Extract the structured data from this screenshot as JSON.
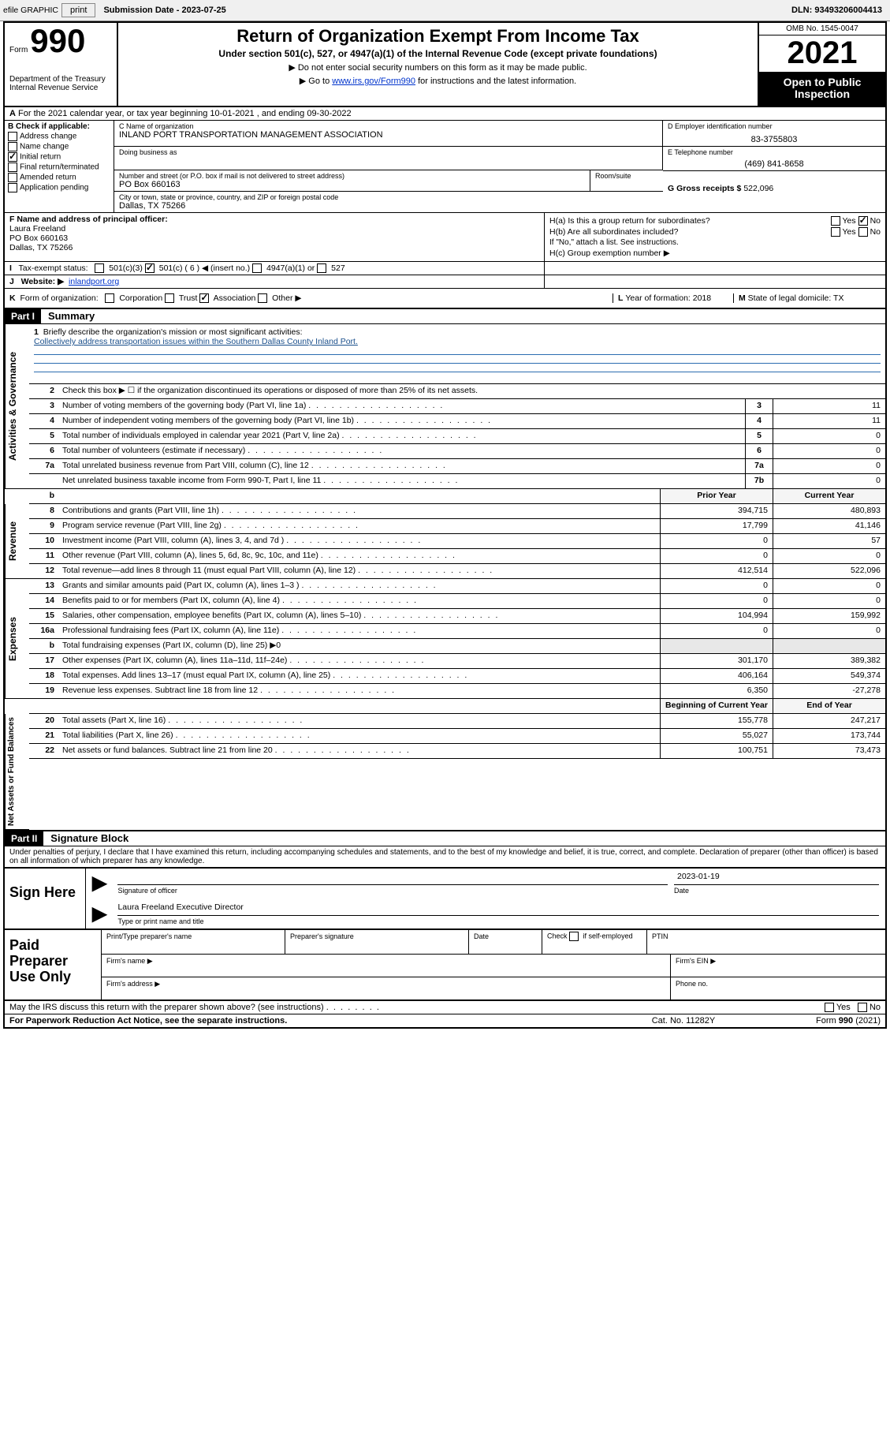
{
  "toolbar": {
    "efile": "efile GRAPHIC",
    "print": "print",
    "sub_label": "Submission Date - 2023-07-25",
    "dln": "DLN: 93493206004413"
  },
  "hdr": {
    "form_word": "Form",
    "form_num": "990",
    "dept": "Department of the Treasury\nInternal Revenue Service",
    "title": "Return of Organization Exempt From Income Tax",
    "sub1": "Under section 501(c), 527, or 4947(a)(1) of the Internal Revenue Code (except private foundations)",
    "sub2": "Do not enter social security numbers on this form as it may be made public.",
    "sub3_pre": "Go to ",
    "sub3_link": "www.irs.gov/Form990",
    "sub3_post": " for instructions and the latest information.",
    "omb": "OMB No. 1545-0047",
    "year": "2021",
    "open": "Open to Public Inspection"
  },
  "rowA": {
    "label_a": "A",
    "text": "For the 2021 calendar year, or tax year beginning 10-01-2021   , and ending 09-30-2022"
  },
  "colB": {
    "head": "B Check if applicable:",
    "items": [
      "Address change",
      "Name change",
      "Initial return",
      "Final return/terminated",
      "Amended return",
      "Application pending"
    ],
    "checked_idx": 2
  },
  "boxC": {
    "lbl": "C Name of organization",
    "name": "INLAND PORT TRANSPORTATION MANAGEMENT ASSOCIATION",
    "dba_lbl": "Doing business as",
    "dba": "",
    "addr_lbl": "Number and street (or P.O. box if mail is not delivered to street address)",
    "room_lbl": "Room/suite",
    "addr": "PO Box 660163",
    "city_lbl": "City or town, state or province, country, and ZIP or foreign postal code",
    "city": "Dallas, TX  75266"
  },
  "boxD": {
    "lbl": "D Employer identification number",
    "val": "83-3755803"
  },
  "boxE": {
    "lbl": "E Telephone number",
    "val": "(469) 841-8658"
  },
  "boxG": {
    "lbl": "G Gross receipts $",
    "val": "522,096"
  },
  "boxF": {
    "lbl": "F Name and address of principal officer:",
    "name": "Laura Freeland",
    "addr1": "PO Box 660163",
    "addr2": "Dallas, TX  75266"
  },
  "boxH": {
    "ha": "H(a)  Is this a group return for subordinates?",
    "hb": "H(b)  Are all subordinates included?",
    "hb_note": "If \"No,\" attach a list. See instructions.",
    "hc": "H(c)  Group exemption number ▶",
    "yes": "Yes",
    "no": "No",
    "ha_no_checked": true
  },
  "rowI": {
    "lbl": "I",
    "text": "Tax-exempt status:",
    "opts": [
      "501(c)(3)",
      "501(c) ( 6 ) ◀ (insert no.)",
      "4947(a)(1) or",
      "527"
    ],
    "checked_idx": 1
  },
  "rowJ": {
    "lbl": "J",
    "text": "Website: ▶",
    "val": "inlandport.org"
  },
  "rowK": {
    "lbl": "K",
    "text": "Form of organization:",
    "opts": [
      "Corporation",
      "Trust",
      "Association",
      "Other ▶"
    ],
    "checked_idx": 2
  },
  "rowL": {
    "lbl": "L",
    "text": "Year of formation: 2018"
  },
  "rowM": {
    "lbl": "M",
    "text": "State of legal domicile: TX"
  },
  "part1": {
    "bar": "Part I",
    "title": "Summary"
  },
  "mission": {
    "num": "1",
    "lbl": "Briefly describe the organization's mission or most significant activities:",
    "text": "Collectively address transportation issues within the Southern Dallas County Inland Port."
  },
  "lines_gov": [
    {
      "num": "2",
      "desc": "Check this box ▶ ☐  if the organization discontinued its operations or disposed of more than 25% of its net assets.",
      "box": "",
      "v": ""
    },
    {
      "num": "3",
      "desc": "Number of voting members of the governing body (Part VI, line 1a)",
      "box": "3",
      "v": "11"
    },
    {
      "num": "4",
      "desc": "Number of independent voting members of the governing body (Part VI, line 1b)",
      "box": "4",
      "v": "11"
    },
    {
      "num": "5",
      "desc": "Total number of individuals employed in calendar year 2021 (Part V, line 2a)",
      "box": "5",
      "v": "0"
    },
    {
      "num": "6",
      "desc": "Total number of volunteers (estimate if necessary)",
      "box": "6",
      "v": "0"
    },
    {
      "num": "7a",
      "desc": "Total unrelated business revenue from Part VIII, column (C), line 12",
      "box": "7a",
      "v": "0"
    },
    {
      "num": "",
      "desc": "Net unrelated business taxable income from Form 990-T, Part I, line 11",
      "box": "7b",
      "v": "0"
    }
  ],
  "twocol_head": {
    "b": "b",
    "prior": "Prior Year",
    "current": "Current Year"
  },
  "lines_rev": [
    {
      "num": "8",
      "desc": "Contributions and grants (Part VIII, line 1h)",
      "p": "394,715",
      "c": "480,893"
    },
    {
      "num": "9",
      "desc": "Program service revenue (Part VIII, line 2g)",
      "p": "17,799",
      "c": "41,146"
    },
    {
      "num": "10",
      "desc": "Investment income (Part VIII, column (A), lines 3, 4, and 7d )",
      "p": "0",
      "c": "57"
    },
    {
      "num": "11",
      "desc": "Other revenue (Part VIII, column (A), lines 5, 6d, 8c, 9c, 10c, and 11e)",
      "p": "0",
      "c": "0"
    },
    {
      "num": "12",
      "desc": "Total revenue—add lines 8 through 11 (must equal Part VIII, column (A), line 12)",
      "p": "412,514",
      "c": "522,096"
    }
  ],
  "lines_exp": [
    {
      "num": "13",
      "desc": "Grants and similar amounts paid (Part IX, column (A), lines 1–3 )",
      "p": "0",
      "c": "0"
    },
    {
      "num": "14",
      "desc": "Benefits paid to or for members (Part IX, column (A), line 4)",
      "p": "0",
      "c": "0"
    },
    {
      "num": "15",
      "desc": "Salaries, other compensation, employee benefits (Part IX, column (A), lines 5–10)",
      "p": "104,994",
      "c": "159,992"
    },
    {
      "num": "16a",
      "desc": "Professional fundraising fees (Part IX, column (A), line 11e)",
      "p": "0",
      "c": "0"
    },
    {
      "num": "b",
      "desc": "Total fundraising expenses (Part IX, column (D), line 25) ▶0",
      "p": "",
      "c": "",
      "shade": true
    },
    {
      "num": "17",
      "desc": "Other expenses (Part IX, column (A), lines 11a–11d, 11f–24e)",
      "p": "301,170",
      "c": "389,382"
    },
    {
      "num": "18",
      "desc": "Total expenses. Add lines 13–17 (must equal Part IX, column (A), line 25)",
      "p": "406,164",
      "c": "549,374"
    },
    {
      "num": "19",
      "desc": "Revenue less expenses. Subtract line 18 from line 12",
      "p": "6,350",
      "c": "-27,278"
    }
  ],
  "twocol_head2": {
    "prior": "Beginning of Current Year",
    "current": "End of Year"
  },
  "lines_net": [
    {
      "num": "20",
      "desc": "Total assets (Part X, line 16)",
      "p": "155,778",
      "c": "247,217"
    },
    {
      "num": "21",
      "desc": "Total liabilities (Part X, line 26)",
      "p": "55,027",
      "c": "173,744"
    },
    {
      "num": "22",
      "desc": "Net assets or fund balances. Subtract line 21 from line 20",
      "p": "100,751",
      "c": "73,473"
    }
  ],
  "side_labels": {
    "gov": "Activities & Governance",
    "rev": "Revenue",
    "exp": "Expenses",
    "net": "Net Assets or Fund Balances"
  },
  "part2": {
    "bar": "Part II",
    "title": "Signature Block"
  },
  "penalties": "Under penalties of perjury, I declare that I have examined this return, including accompanying schedules and statements, and to the best of my knowledge and belief, it is true, correct, and complete. Declaration of preparer (other than officer) is based on all information of which preparer has any knowledge.",
  "sign": {
    "lbl": "Sign Here",
    "sig_lbl": "Signature of officer",
    "date_lbl": "Date",
    "date": "2023-01-19",
    "name_title": "Laura Freeland  Executive Director",
    "name_lbl": "Type or print name and title"
  },
  "pp": {
    "lbl": "Paid Preparer Use Only",
    "h1": "Print/Type preparer's name",
    "h2": "Preparer's signature",
    "h3": "Date",
    "h4_pre": "Check",
    "h4_post": "if self-employed",
    "h5": "PTIN",
    "r2a": "Firm's name  ▶",
    "r2b": "Firm's EIN ▶",
    "r3a": "Firm's address ▶",
    "r3b": "Phone no."
  },
  "ftr": {
    "q": "May the IRS discuss this return with the preparer shown above? (see instructions)",
    "yes": "Yes",
    "no": "No",
    "paperwork": "For Paperwork Reduction Act Notice, see the separate instructions.",
    "cat": "Cat. No. 11282Y",
    "form": "Form 990 (2021)"
  },
  "colors": {
    "link": "#0033cc",
    "shade": "#e8e8e8",
    "mission_rule": "#2b6cb0"
  }
}
